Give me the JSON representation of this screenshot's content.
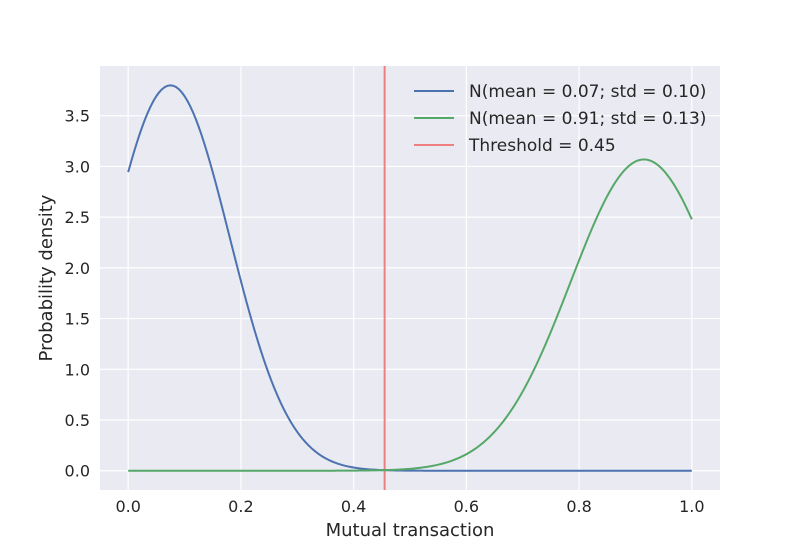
{
  "chart_data": {
    "type": "line",
    "title": "",
    "xlabel": "Mutual transaction",
    "ylabel": "Probability density",
    "xlim": [
      -0.05,
      1.05
    ],
    "ylim": [
      -0.19,
      3.99
    ],
    "xticks": [
      0.0,
      0.2,
      0.4,
      0.6,
      0.8,
      1.0
    ],
    "xtick_labels": [
      "0.0",
      "0.2",
      "0.4",
      "0.6",
      "0.8",
      "1.0"
    ],
    "yticks": [
      0.0,
      0.5,
      1.0,
      1.5,
      2.0,
      2.5,
      3.0,
      3.5
    ],
    "ytick_labels": [
      "0.0",
      "0.5",
      "1.0",
      "1.5",
      "2.0",
      "2.5",
      "3.0",
      "3.5"
    ],
    "grid": true,
    "background": "#EAEAF2",
    "legend_position": "top-right",
    "series": [
      {
        "name": "N(mean = 0.07; std = 0.10)",
        "color": "#4C72B0",
        "mean": 0.075,
        "std": 0.105,
        "x": [
          0.0,
          0.05,
          0.075,
          0.1,
          0.15,
          0.2,
          0.25,
          0.3,
          0.35,
          0.4,
          0.45,
          0.5,
          0.6,
          0.7,
          0.8,
          0.9,
          1.0
        ],
        "y": [
          2.92,
          3.69,
          3.8,
          3.69,
          2.92,
          1.89,
          0.94,
          0.38,
          0.12,
          0.03,
          0.01,
          0.0,
          0.0,
          0.0,
          0.0,
          0.0,
          0.0
        ]
      },
      {
        "name": "N(mean = 0.91; std = 0.13)",
        "color": "#55A868",
        "mean": 0.915,
        "std": 0.13,
        "x": [
          0.0,
          0.3,
          0.4,
          0.45,
          0.5,
          0.55,
          0.6,
          0.65,
          0.7,
          0.75,
          0.8,
          0.85,
          0.9,
          0.915,
          0.95,
          1.0
        ],
        "y": [
          0.0,
          0.0,
          0.0,
          0.01,
          0.03,
          0.06,
          0.16,
          0.37,
          0.77,
          1.36,
          2.06,
          2.7,
          3.05,
          3.07,
          2.97,
          2.49
        ]
      }
    ],
    "threshold": {
      "name": "Threshold = 0.45",
      "x": 0.455,
      "color": "#F08080"
    }
  }
}
